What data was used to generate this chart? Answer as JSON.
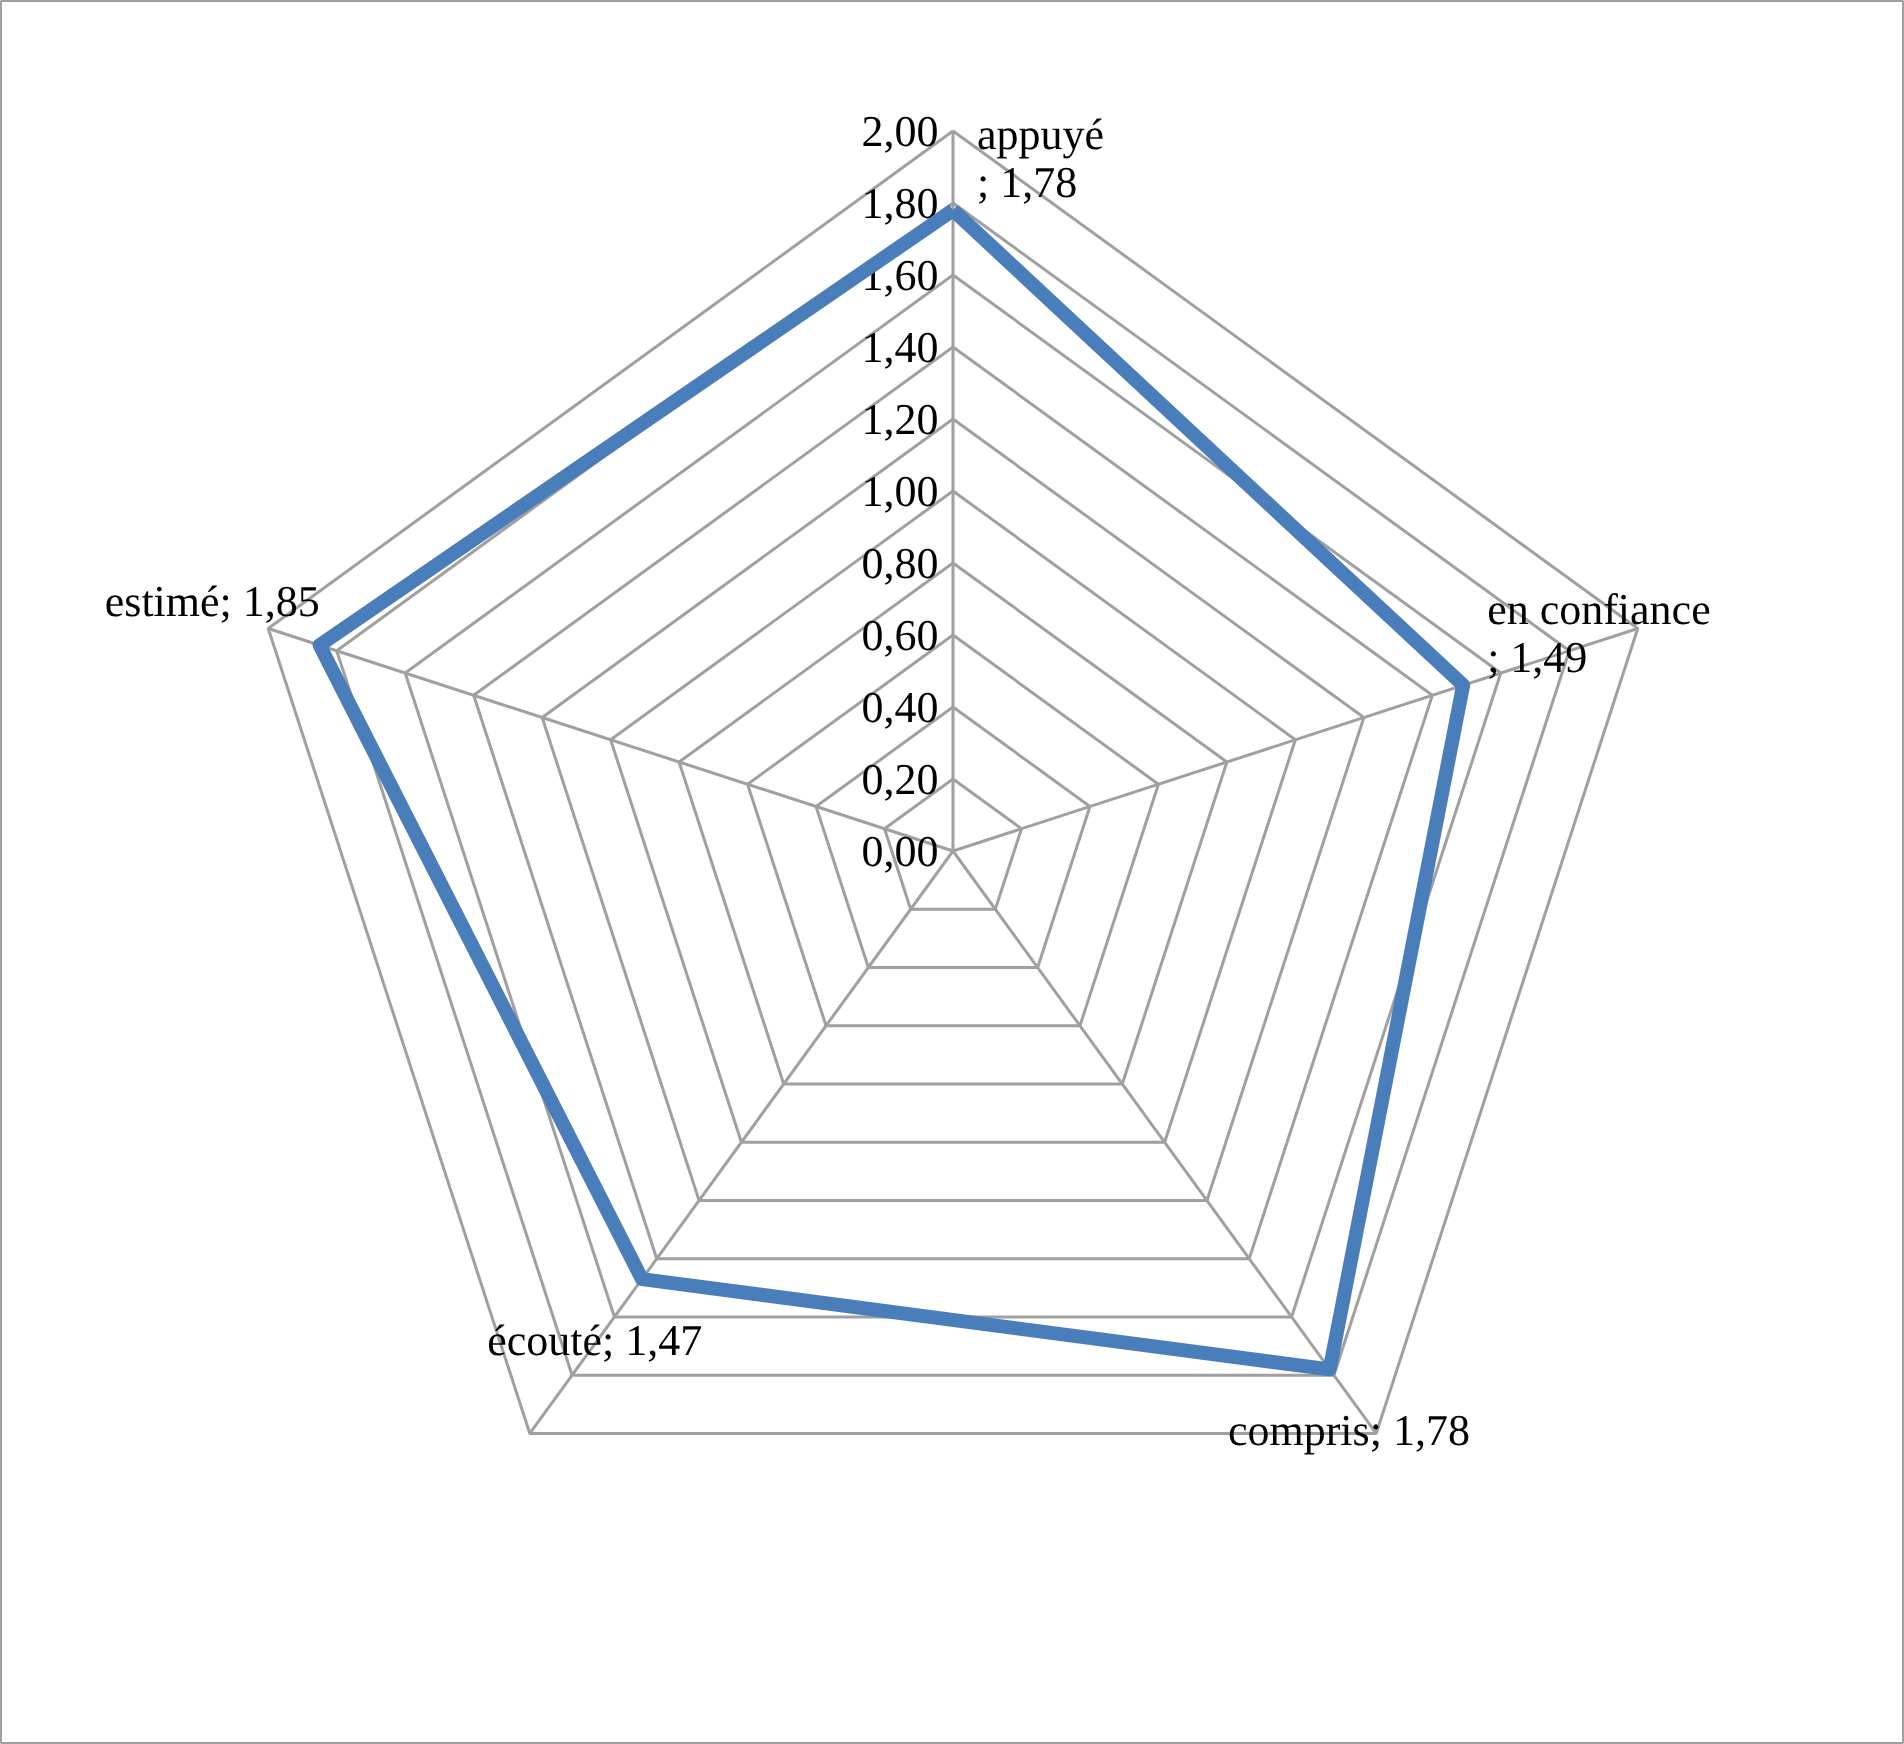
{
  "chart_data": {
    "type": "radar",
    "categories": [
      "appuyé",
      "en confiance",
      "compris",
      "écouté",
      "estimé"
    ],
    "series": [
      {
        "color": "#4a7ebb",
        "values": [
          1.78,
          1.49,
          1.78,
          1.47,
          1.85
        ],
        "value_labels": [
          "; 1,78",
          "; 1,49",
          "; 1,78",
          "; 1,47",
          "; 1,85"
        ]
      }
    ],
    "ylim": [
      0,
      2
    ],
    "yticks": [
      {
        "value": 0,
        "label": "0,00"
      },
      {
        "value": 0.2,
        "label": "0,20"
      },
      {
        "value": 0.4,
        "label": "0,40"
      },
      {
        "value": 0.6,
        "label": "0,60"
      },
      {
        "value": 0.8,
        "label": "0,80"
      },
      {
        "value": 1.0,
        "label": "1,00"
      },
      {
        "value": 1.2,
        "label": "1,20"
      },
      {
        "value": 1.4,
        "label": "1,40"
      },
      {
        "value": 1.6,
        "label": "1,60"
      },
      {
        "value": 1.8,
        "label": "1,80"
      },
      {
        "value": 2.0,
        "label": "2,00"
      }
    ],
    "grid": true
  }
}
